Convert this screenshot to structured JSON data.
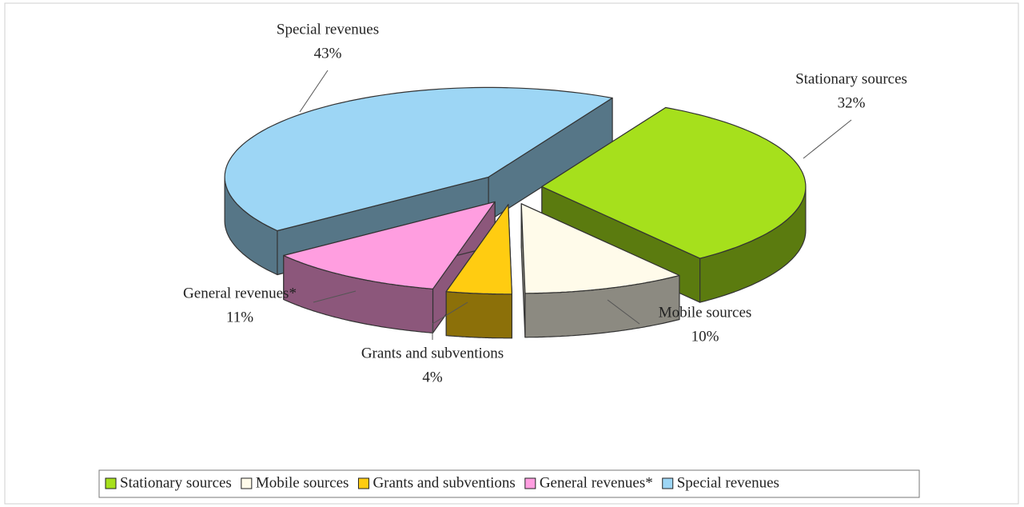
{
  "chart_data": {
    "type": "pie3d",
    "categories": [
      "Stationary sources",
      "Mobile sources",
      "Grants and subventions",
      "General revenues*",
      "Special revenues"
    ],
    "values": [
      32,
      10,
      4,
      11,
      43
    ],
    "value_labels": [
      "32%",
      "10%",
      "4%",
      "11%",
      "43%"
    ],
    "colors": [
      "#a6e01c",
      "#fffbea",
      "#ffcc11",
      "#ff9ee0",
      "#9dd6f5"
    ],
    "legend": "bottom"
  }
}
